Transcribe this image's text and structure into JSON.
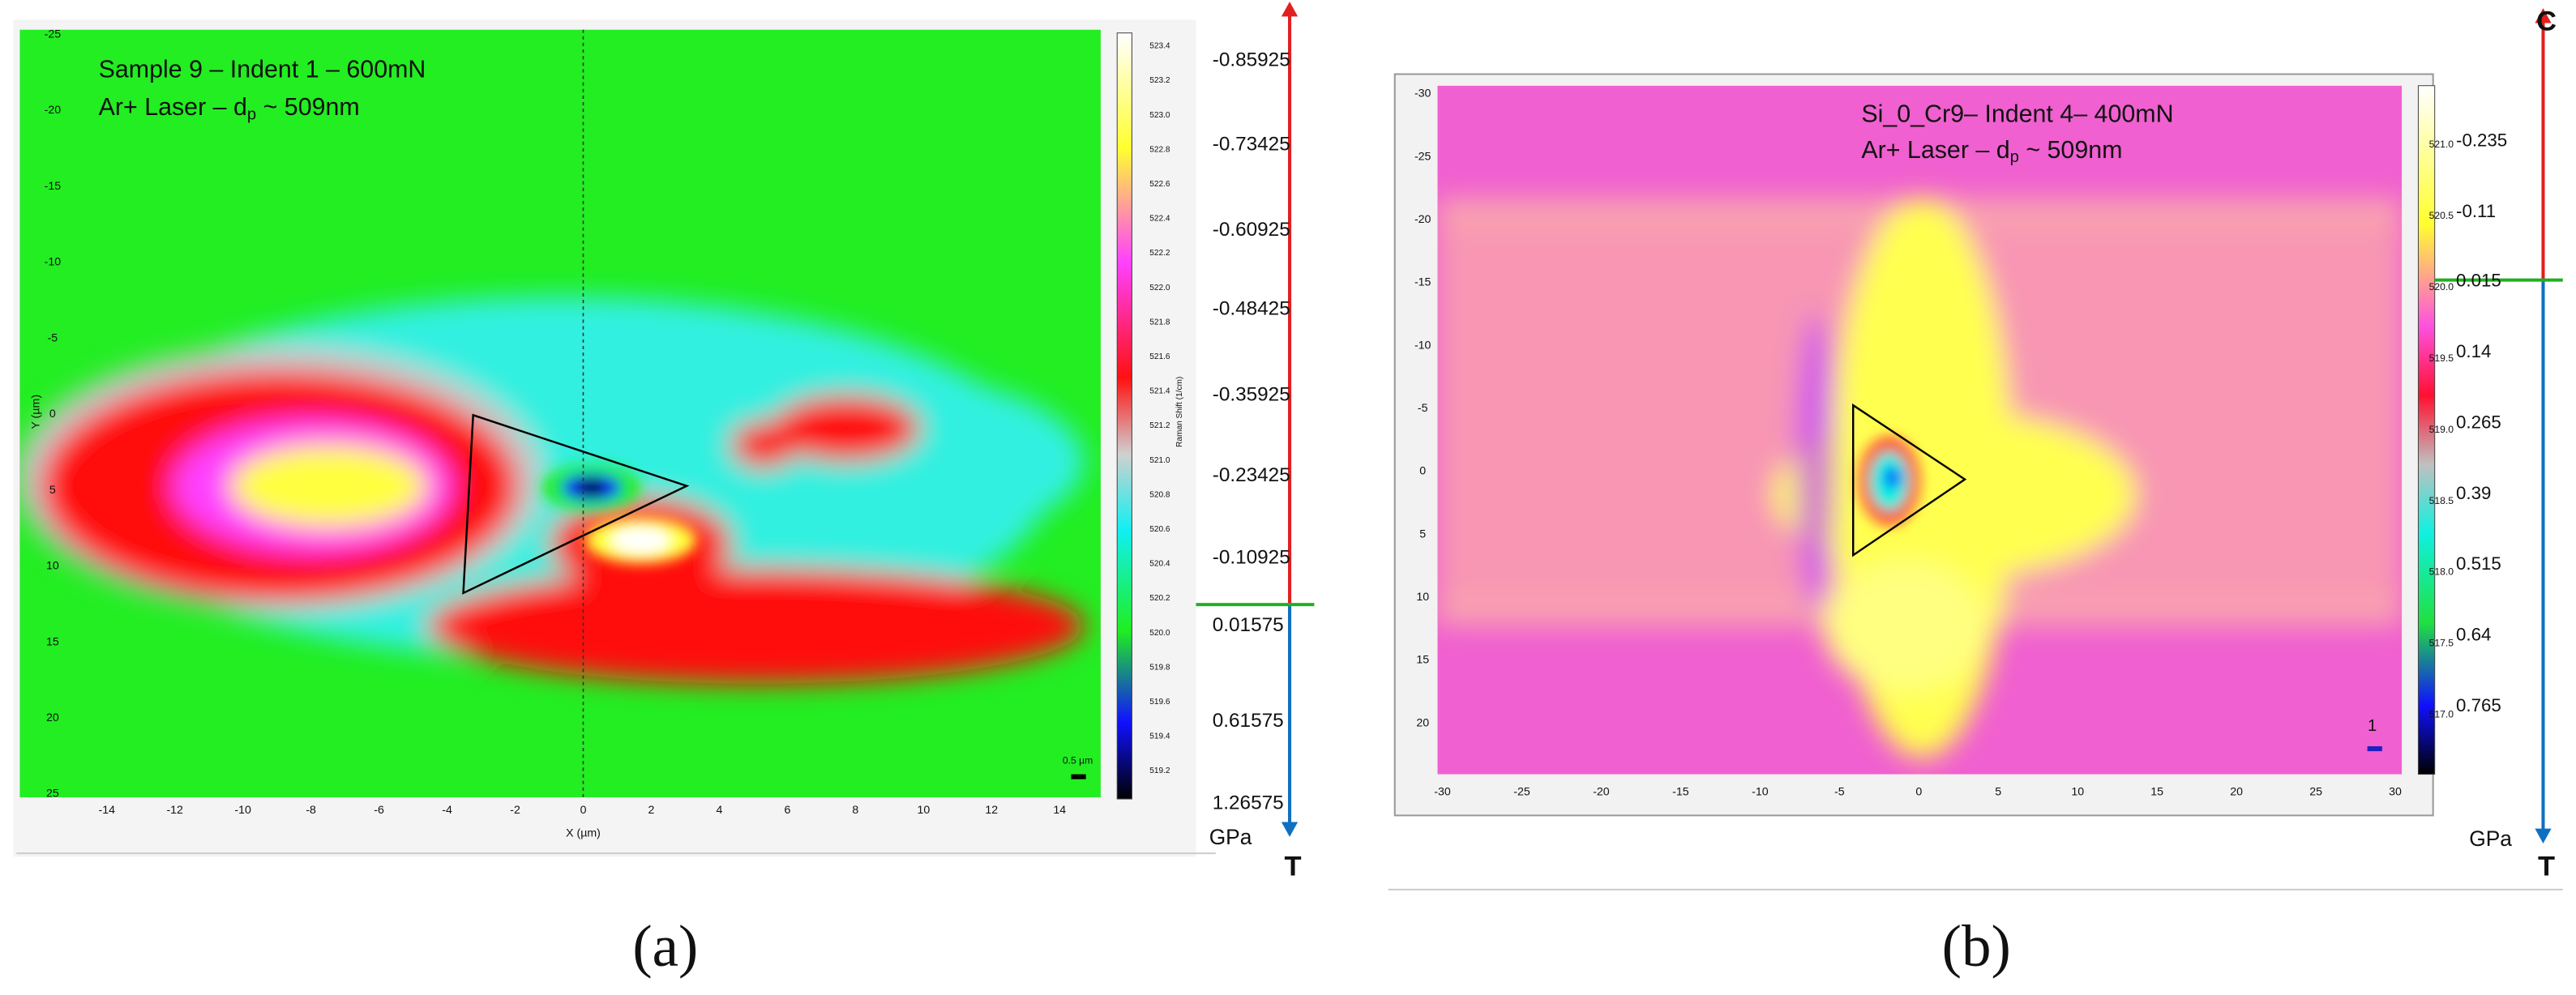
{
  "panels": [
    {
      "caption": "(a)",
      "title": "Sample 9 – Indent 1 – 600mN",
      "subtitle_pre": "Ar+  Laser – d",
      "subtitle_sub": "p",
      "subtitle_post": " ~ 509nm",
      "x_label": "X (µm)",
      "y_label": "Y (µm)",
      "colorbar_label": "Raman Shift (1/cm)",
      "scale_bar": "0.5 µm",
      "x_ticks": [
        "-14",
        "-12",
        "-10",
        "-8",
        "-6",
        "-4",
        "-2",
        "0",
        "2",
        "4",
        "6",
        "8",
        "10",
        "12",
        "14"
      ],
      "y_ticks": [
        "-25",
        "-20",
        "-15",
        "-10",
        "-5",
        "0",
        "5",
        "10",
        "15",
        "20",
        "25"
      ],
      "colorbar_ticks": [
        "523.4",
        "523.2",
        "523.0",
        "522.8",
        "522.6",
        "522.4",
        "522.2",
        "522.0",
        "521.8",
        "521.6",
        "521.4",
        "521.2",
        "521.0",
        "520.8",
        "520.6",
        "520.4",
        "520.2",
        "520.0",
        "519.8",
        "519.6",
        "519.4",
        "519.2"
      ],
      "stress_ticks": [
        "-0.85925",
        "-0.73425",
        "-0.60925",
        "-0.48425",
        "-0.35925",
        "-0.23425",
        "-0.10925",
        "0.01575",
        "0.61575",
        "1.26575"
      ],
      "stress_unit": "GPa",
      "tension": "T"
    },
    {
      "caption": "(b)",
      "title": "Si_0_Cr9– Indent 4– 400mN",
      "subtitle_pre": "Ar+  Laser – d",
      "subtitle_sub": "p",
      "subtitle_post": " ~ 509nm",
      "scale_bar": "1",
      "x_ticks": [
        "-30",
        "-25",
        "-20",
        "-15",
        "-10",
        "-5",
        "0",
        "5",
        "10",
        "15",
        "20",
        "25",
        "30"
      ],
      "y_ticks": [
        "-30",
        "-25",
        "-20",
        "-15",
        "-10",
        "-5",
        "0",
        "5",
        "10",
        "15",
        "20"
      ],
      "colorbar_ticks": [
        "521.0",
        "520.5",
        "520.0",
        "519.5",
        "519.0",
        "518.5",
        "518.0",
        "517.5",
        "517.0"
      ],
      "stress_ticks": [
        "-0.235",
        "-0.11",
        "0.015",
        "0.14",
        "0.265",
        "0.39",
        "0.515",
        "0.64",
        "0.765"
      ],
      "stress_unit": "GPa",
      "compression": "C",
      "tension": "T"
    }
  ]
}
